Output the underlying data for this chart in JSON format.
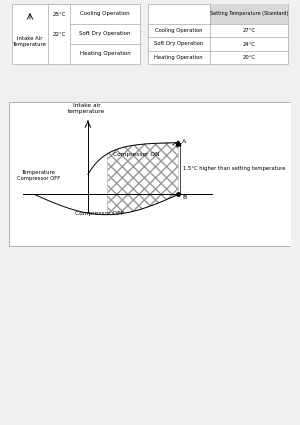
{
  "bg_color": "#f0f0f0",
  "table1": {
    "arrow_label": "↑",
    "label_intake": "Intake Air\nTemperature",
    "temp1": "25°C",
    "temp2": "22°C",
    "ops": [
      "Cooling Operation",
      "Soft Dry Operation",
      "Heating Operation"
    ]
  },
  "table2": {
    "header": "Setting Temperature (Standard)",
    "rows": [
      [
        "Cooling Operation",
        "27°C"
      ],
      [
        "Soft Dry Operation",
        "24°C"
      ],
      [
        "Heating Operation",
        "20°C"
      ]
    ]
  },
  "diagram": {
    "label_intake": "Intake air\ntemperature",
    "label_compressor_on": "Compressor ON",
    "label_compressor_off_curve": "Compressor OFF",
    "label_temp_compressor_off": "Temperature\nCompressor OFF",
    "label_higher": "1.5°C higher than setting temperature",
    "label_A": "A",
    "label_B": "B"
  }
}
